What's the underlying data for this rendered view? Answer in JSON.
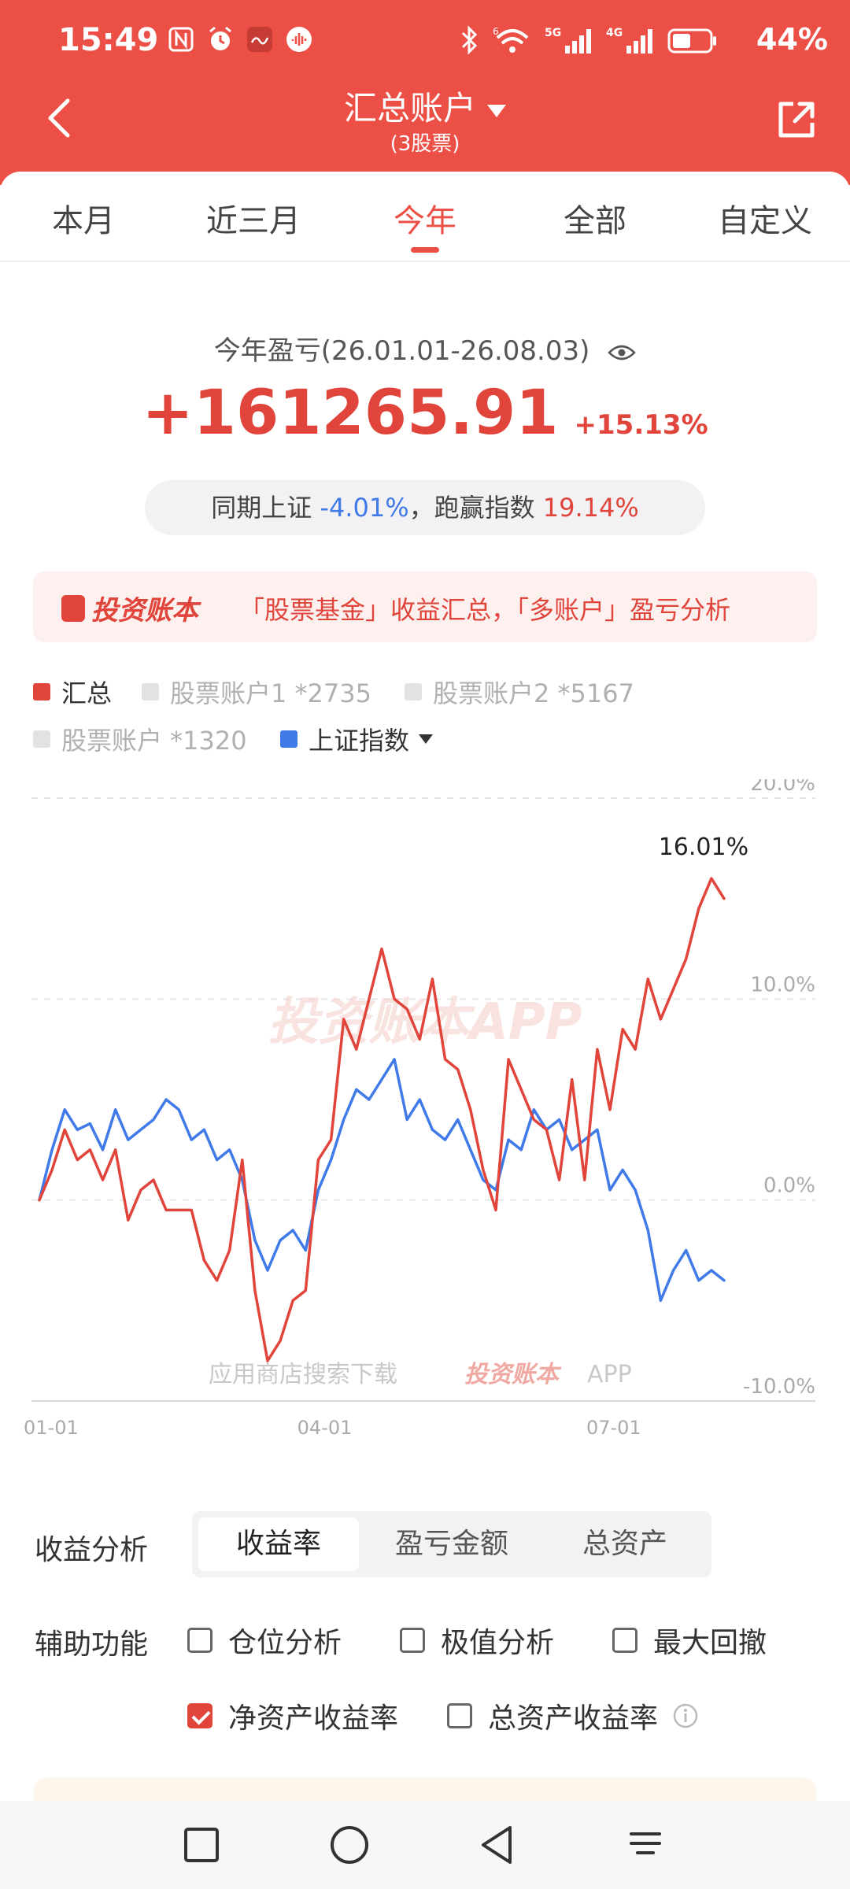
{
  "status_bar": {
    "time": "15:49",
    "battery": "44%",
    "signal_5g": "5G",
    "signal_4g": "4G",
    "wifi_badge": "6"
  },
  "nav": {
    "title": "汇总账户",
    "subtitle": "(3股票)"
  },
  "tabs": [
    "本月",
    "近三月",
    "今年",
    "全部",
    "自定义"
  ],
  "active_tab": "今年",
  "summary": {
    "period": "今年盈亏(26.01.01-26.08.03)",
    "profit": "+161265.91",
    "profit_pct": "+15.13%",
    "compare_label": "同期上证",
    "compare_value": "-4.01%",
    "outperform_label": "，跑赢指数",
    "outperform_value": "19.14%"
  },
  "banner": {
    "logo_text": "投资账本",
    "text": "「股票基金」收益汇总，「多账户」盈亏分析"
  },
  "legend": [
    {
      "label": "汇总",
      "color": "#e0443a",
      "active": true
    },
    {
      "label": "股票账户1 *2735",
      "color": "#e2e2e2",
      "active": false
    },
    {
      "label": "股票账户2 *5167",
      "color": "#e2e2e2",
      "active": false
    },
    {
      "label": "股票账户 *1320",
      "color": "#e2e2e2",
      "active": false
    },
    {
      "label": "上证指数",
      "color": "#3f7ae8",
      "active": true
    }
  ],
  "chart_data": {
    "type": "line",
    "title": "",
    "xlabel": "",
    "ylabel": "",
    "ylim": [
      -10,
      20
    ],
    "y_ticks": [
      "20.0%",
      "10.0%",
      "0.0%",
      "-10.0%"
    ],
    "x_ticks": [
      "01-01",
      "04-01",
      "07-01"
    ],
    "end_label": "16.01%",
    "watermark": "投资账本APP",
    "watermark_footer": "应用商店搜索下载",
    "watermark_footer_brand": "投资账本",
    "watermark_footer_app": "APP",
    "x": [
      "01-01",
      "01-05",
      "01-09",
      "01-13",
      "01-17",
      "01-21",
      "01-25",
      "01-29",
      "02-02",
      "02-06",
      "02-10",
      "02-14",
      "02-18",
      "02-22",
      "02-26",
      "03-02",
      "03-06",
      "03-10",
      "03-14",
      "03-18",
      "03-22",
      "03-26",
      "03-30",
      "04-03",
      "04-07",
      "04-11",
      "04-15",
      "04-19",
      "04-23",
      "04-27",
      "05-01",
      "05-05",
      "05-09",
      "05-13",
      "05-17",
      "05-21",
      "05-25",
      "05-29",
      "06-02",
      "06-06",
      "06-10",
      "06-14",
      "06-18",
      "06-22",
      "06-26",
      "06-30",
      "07-04",
      "07-08",
      "07-12",
      "07-16",
      "07-20",
      "07-24",
      "07-28",
      "08-01",
      "08-03"
    ],
    "series": [
      {
        "name": "汇总",
        "color": "#e0443a",
        "values": [
          0.0,
          1.5,
          3.5,
          2.0,
          2.5,
          1.0,
          2.5,
          -1.0,
          0.5,
          1.0,
          -0.5,
          -0.5,
          -0.5,
          -3.0,
          -4.0,
          -2.5,
          2.0,
          -4.5,
          -8.0,
          -7.0,
          -5.0,
          -4.5,
          2.0,
          3.0,
          9.0,
          7.5,
          10.0,
          12.5,
          10.0,
          9.5,
          8.0,
          11.0,
          7.0,
          6.5,
          4.5,
          1.5,
          -0.5,
          7.0,
          5.5,
          4.0,
          3.5,
          1.0,
          6.0,
          1.0,
          7.5,
          4.5,
          8.5,
          7.5,
          11.0,
          9.0,
          10.5,
          12.0,
          14.5,
          16.0,
          15.0
        ]
      },
      {
        "name": "上证指数",
        "color": "#3f7ae8",
        "values": [
          0.0,
          2.5,
          4.5,
          3.5,
          3.8,
          2.5,
          4.5,
          3.0,
          3.5,
          4.0,
          5.0,
          4.5,
          3.0,
          3.5,
          2.0,
          2.5,
          1.0,
          -2.0,
          -3.5,
          -2.0,
          -1.5,
          -2.5,
          0.5,
          2.0,
          4.0,
          5.5,
          5.0,
          6.0,
          7.0,
          4.0,
          5.0,
          3.5,
          3.0,
          4.0,
          2.5,
          1.0,
          0.5,
          3.0,
          2.5,
          4.5,
          3.5,
          4.0,
          2.5,
          3.0,
          3.5,
          0.5,
          1.5,
          0.5,
          -1.5,
          -5.0,
          -3.5,
          -2.5,
          -4.0,
          -3.5,
          -4.0
        ]
      }
    ]
  },
  "analysis": {
    "label": "收益分析",
    "options": [
      "收益率",
      "盈亏金额",
      "总资产"
    ],
    "selected": "收益率"
  },
  "aux": {
    "label": "辅助功能",
    "options": [
      {
        "label": "仓位分析",
        "checked": false
      },
      {
        "label": "极值分析",
        "checked": false
      },
      {
        "label": "最大回撤",
        "checked": false
      },
      {
        "label": "净资产收益率",
        "checked": true
      },
      {
        "label": "总资产收益率",
        "checked": false
      }
    ]
  }
}
